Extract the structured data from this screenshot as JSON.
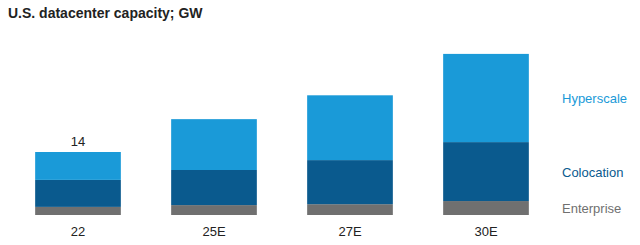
{
  "chart_data": {
    "type": "bar",
    "title": "U.S. datacenter capacity; GW",
    "categories": [
      "22",
      "25E",
      "27E",
      "30E"
    ],
    "series": [
      {
        "name": "Enterprise",
        "color": "#707070",
        "values": [
          1.8,
          2.2,
          2.4,
          3.1
        ]
      },
      {
        "name": "Colocation",
        "color": "#0a5a8e",
        "values": [
          6.0,
          7.8,
          9.8,
          13.1
        ]
      },
      {
        "name": "Hyperscale",
        "color": "#1a9ad8",
        "values": [
          6.2,
          11.3,
          14.4,
          19.6
        ]
      }
    ],
    "totals": [
      14,
      null,
      null,
      null
    ],
    "stacked": true,
    "legend": "right",
    "tick_labels": "x",
    "grid": false,
    "ylim": [
      0,
      40
    ]
  }
}
